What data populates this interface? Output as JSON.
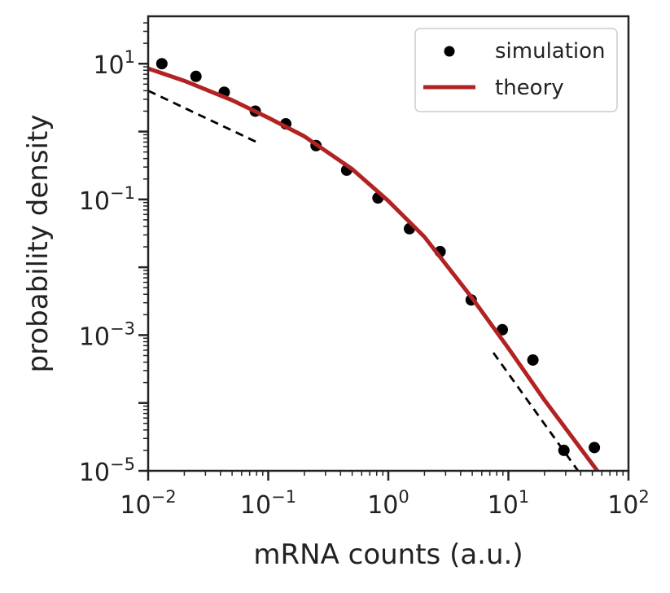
{
  "chart_data": {
    "type": "scatter",
    "xlabel": "mRNA counts (a.u.)",
    "ylabel": "probability density",
    "xscale": "log",
    "yscale": "log",
    "xlim": [
      0.01,
      100
    ],
    "ylim": [
      1e-05,
      50
    ],
    "x_ticks": [
      0.01,
      0.1,
      1,
      10,
      100
    ],
    "y_ticks": [
      1e-05,
      0.001,
      0.1,
      10
    ],
    "x_tick_labels": [
      {
        "base": "10",
        "exp": "−2"
      },
      {
        "base": "10",
        "exp": "−1"
      },
      {
        "base": "10",
        "exp": "0"
      },
      {
        "base": "10",
        "exp": "1"
      },
      {
        "base": "10",
        "exp": "2"
      }
    ],
    "y_tick_labels": [
      {
        "base": "10",
        "exp": "−5"
      },
      {
        "base": "10",
        "exp": "−3"
      },
      {
        "base": "10",
        "exp": "−1"
      },
      {
        "base": "10",
        "exp": "1"
      }
    ],
    "legend_position": "top-right",
    "grid": false,
    "series": [
      {
        "name": "simulation",
        "kind": "points",
        "color": "#000000",
        "x": [
          0.013,
          0.025,
          0.043,
          0.078,
          0.14,
          0.25,
          0.45,
          0.82,
          1.5,
          2.7,
          4.9,
          8.9,
          16,
          29,
          52
        ],
        "y": [
          10.0,
          6.5,
          3.8,
          2.0,
          1.3,
          0.62,
          0.27,
          0.105,
          0.037,
          0.017,
          0.0033,
          0.0012,
          0.00043,
          2e-05,
          2.2e-05
        ]
      },
      {
        "name": "theory",
        "kind": "line",
        "color": "#b22222",
        "x": [
          0.01,
          0.02,
          0.05,
          0.1,
          0.2,
          0.5,
          1,
          2,
          5,
          10,
          20,
          55
        ],
        "y": [
          8.5,
          5.6,
          2.9,
          1.6,
          0.85,
          0.28,
          0.095,
          0.028,
          0.0035,
          0.00064,
          0.00011,
          1e-05
        ]
      },
      {
        "kind": "dashed",
        "color": "#000000",
        "x": [
          0.01,
          0.08
        ],
        "y": [
          4.0,
          0.7
        ]
      },
      {
        "kind": "dashed",
        "color": "#000000",
        "x": [
          7.5,
          38
        ],
        "y": [
          0.00055,
          1e-05
        ]
      }
    ]
  }
}
